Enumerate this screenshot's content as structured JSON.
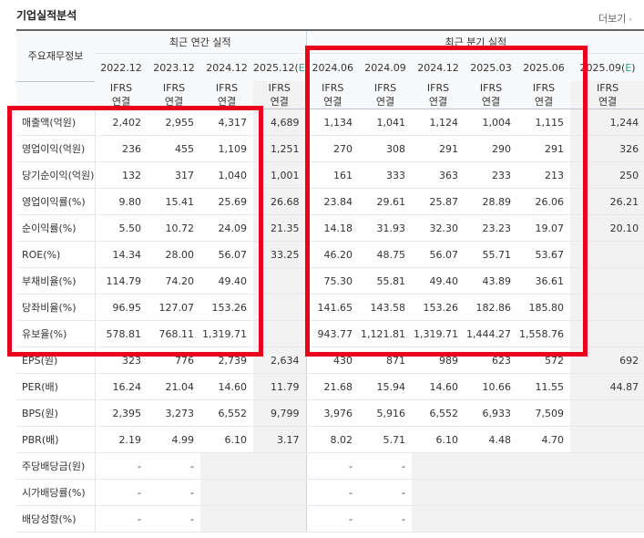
{
  "page": {
    "title": "기업실적분석",
    "more_label": "더보기"
  },
  "icons": {
    "more": "chevron-right-icon"
  },
  "accent_color": "#e8001c",
  "table": {
    "label_header": "주요재무정보",
    "annual_header": "최근 연간 실적",
    "quarter_header": "최근 분기 실적",
    "periods": [
      {
        "text": "2022.12",
        "est": ""
      },
      {
        "text": "2023.12",
        "est": ""
      },
      {
        "text": "2024.12",
        "est": ""
      },
      {
        "text": "2025.12(",
        "est": "E"
      },
      {
        "text": "2024.06",
        "est": ""
      },
      {
        "text": "2024.09",
        "est": ""
      },
      {
        "text": "2024.12",
        "est": ""
      },
      {
        "text": "2025.03",
        "est": ""
      },
      {
        "text": "2025.06",
        "est": ""
      },
      {
        "text": "2025.09(",
        "est": "E"
      }
    ],
    "std_top": "IFRS",
    "std_bottom": "연결",
    "rows": [
      {
        "label": "매출액(억원)",
        "values": [
          "2,402",
          "2,955",
          "4,317",
          "4,689",
          "1,134",
          "1,041",
          "1,124",
          "1,004",
          "1,115",
          "1,244"
        ]
      },
      {
        "label": "영업이익(억원)",
        "values": [
          "236",
          "455",
          "1,109",
          "1,251",
          "270",
          "308",
          "291",
          "290",
          "291",
          "326"
        ]
      },
      {
        "label": "당기순이익(억원)",
        "values": [
          "132",
          "317",
          "1,040",
          "1,001",
          "161",
          "333",
          "363",
          "233",
          "213",
          "250"
        ]
      },
      {
        "label": "영업이익률(%)",
        "values": [
          "9.80",
          "15.41",
          "25.69",
          "26.68",
          "23.84",
          "29.61",
          "25.87",
          "28.89",
          "26.06",
          "26.21"
        ]
      },
      {
        "label": "순이익률(%)",
        "values": [
          "5.50",
          "10.72",
          "24.09",
          "21.35",
          "14.18",
          "31.93",
          "32.30",
          "23.23",
          "19.07",
          "20.10"
        ]
      },
      {
        "label": "ROE(%)",
        "values": [
          "14.34",
          "28.00",
          "56.07",
          "33.25",
          "46.20",
          "48.75",
          "56.07",
          "55.71",
          "53.67",
          ""
        ]
      },
      {
        "label": "부채비율(%)",
        "values": [
          "114.79",
          "74.20",
          "49.40",
          "",
          "75.30",
          "55.81",
          "49.40",
          "43.89",
          "36.61",
          ""
        ]
      },
      {
        "label": "당좌비율(%)",
        "values": [
          "96.95",
          "127.07",
          "153.26",
          "",
          "141.65",
          "143.58",
          "153.26",
          "182.86",
          "185.80",
          ""
        ]
      },
      {
        "label": "유보율(%)",
        "values": [
          "578.81",
          "768.11",
          "1,319.71",
          "",
          "943.77",
          "1,121.81",
          "1,319.71",
          "1,444.27",
          "1,558.76",
          ""
        ]
      },
      {
        "label": "EPS(원)",
        "values": [
          "323",
          "776",
          "2,739",
          "2,634",
          "430",
          "871",
          "989",
          "623",
          "572",
          "692"
        ]
      },
      {
        "label": "PER(배)",
        "values": [
          "16.24",
          "21.04",
          "14.60",
          "11.79",
          "21.68",
          "15.94",
          "14.60",
          "10.66",
          "11.55",
          "44.87"
        ]
      },
      {
        "label": "BPS(원)",
        "values": [
          "2,395",
          "3,273",
          "6,552",
          "9,799",
          "3,976",
          "5,916",
          "6,552",
          "6,933",
          "7,509",
          ""
        ]
      },
      {
        "label": "PBR(배)",
        "values": [
          "2.19",
          "4.99",
          "6.10",
          "3.17",
          "8.02",
          "5.71",
          "6.10",
          "4.48",
          "4.70",
          ""
        ]
      },
      {
        "label": "주당배당금(원)",
        "values": [
          "-",
          "-",
          "",
          "",
          "-",
          "-",
          "",
          "",
          "",
          ""
        ]
      },
      {
        "label": "시가배당률(%)",
        "values": [
          "-",
          "-",
          "",
          "",
          "-",
          "-",
          "",
          "",
          "",
          ""
        ]
      },
      {
        "label": "배당성향(%)",
        "values": [
          "-",
          "-",
          "",
          "",
          "-",
          "-",
          "",
          "",
          "",
          ""
        ]
      }
    ]
  }
}
